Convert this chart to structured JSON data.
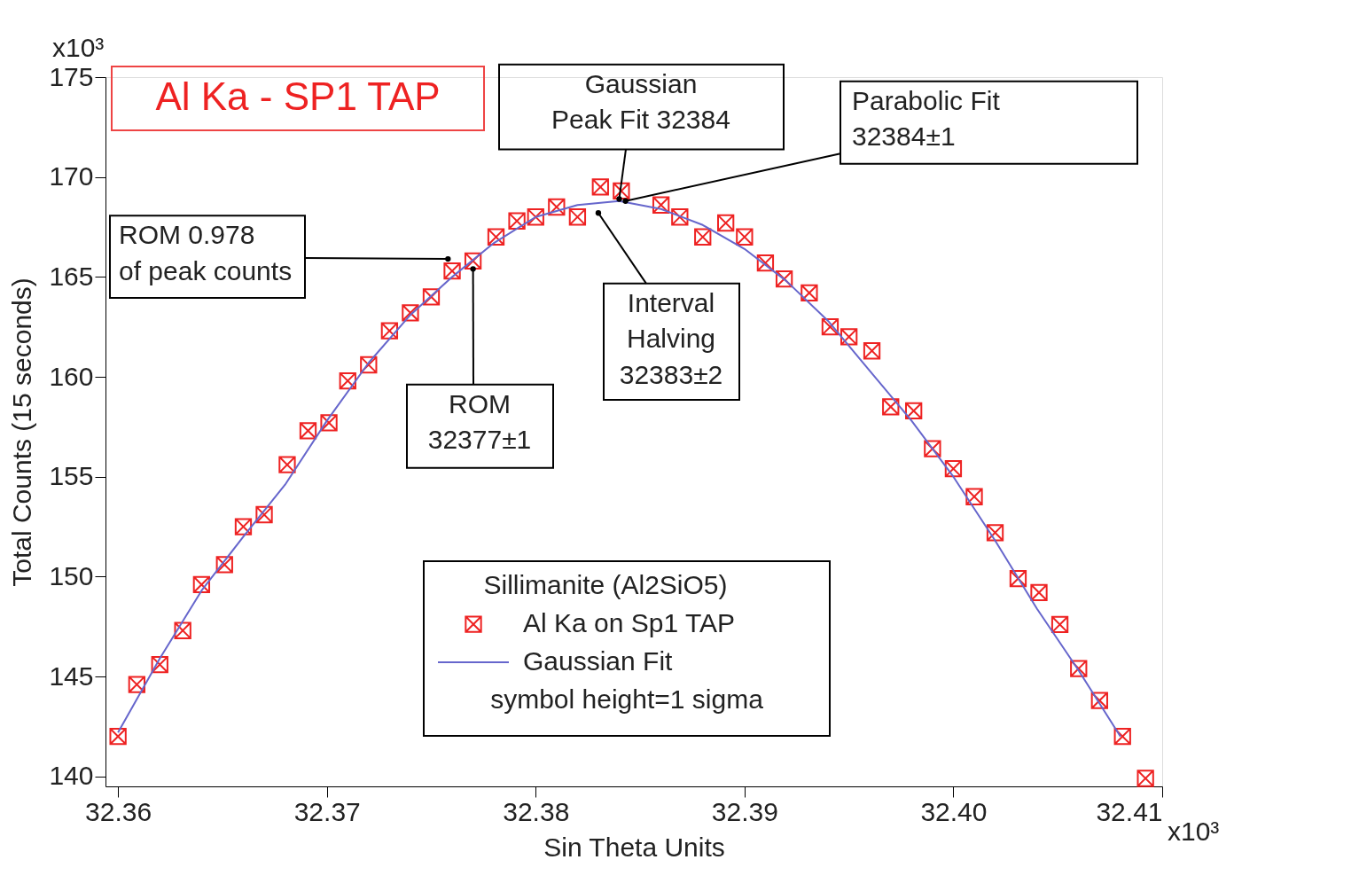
{
  "chart_data": {
    "type": "scatter",
    "title": "Al Ka - SP1 TAP",
    "xlabel": "Sin Theta Units",
    "ylabel": "Total Counts (15 seconds)",
    "legend_title": "Sillimanite (Al2SiO5)",
    "legend": "bottom",
    "grid": false,
    "xlim": [
      32.3594,
      32.41
    ],
    "xticks": [
      32.36,
      32.37,
      32.38,
      32.39,
      {
        "value": 32.4,
        "label": "32.40"
      },
      32.41
    ],
    "ylim": [
      139.5,
      175
    ],
    "yticks": [
      140,
      145,
      150,
      155,
      160,
      165,
      170,
      175
    ],
    "series": [
      {
        "name": "Al Ka on Sp1 TAP",
        "marker": "cross",
        "color": "#ee2222",
        "x": [
          32.36,
          32.3609,
          32.362,
          32.3631,
          32.364,
          32.3651,
          32.366,
          32.367,
          32.3681,
          32.3691,
          32.3701,
          32.371,
          32.372,
          32.373,
          32.374,
          32.375,
          32.376,
          32.377,
          32.3781,
          32.3791,
          32.38,
          32.381,
          32.382,
          32.3831,
          32.3841,
          32.386,
          32.3869,
          32.388,
          32.3891,
          32.39,
          32.391,
          32.3919,
          32.3931,
          32.3941,
          32.395,
          32.3961,
          32.397,
          32.3981,
          32.399,
          32.4,
          32.401,
          32.402,
          32.4031,
          32.4041,
          32.4051,
          32.406,
          32.407,
          32.4081,
          32.4092
        ],
        "values": [
          142.0,
          144.6,
          145.6,
          147.3,
          149.6,
          150.6,
          152.5,
          153.1,
          155.6,
          157.3,
          157.7,
          159.8,
          160.6,
          162.3,
          163.2,
          164.0,
          165.3,
          165.8,
          167.0,
          167.8,
          168.0,
          168.5,
          168.0,
          169.5,
          169.3,
          168.6,
          168.0,
          167.0,
          167.7,
          167.0,
          165.7,
          164.9,
          164.2,
          162.5,
          162.0,
          161.3,
          158.5,
          158.3,
          156.4,
          155.4,
          154.0,
          152.2,
          149.9,
          149.2,
          147.6,
          145.4,
          143.8,
          142.0,
          139.9
        ]
      },
      {
        "name": "Gaussian Fit",
        "type": "line",
        "marker": "none",
        "line_style": "solid",
        "color": "#6666cc",
        "x": [
          32.36,
          32.362,
          32.364,
          32.366,
          32.368,
          32.37,
          32.372,
          32.374,
          32.376,
          32.378,
          32.38,
          32.382,
          32.384,
          32.386,
          32.388,
          32.39,
          32.392,
          32.394,
          32.396,
          32.398,
          32.4,
          32.402,
          32.404,
          32.406,
          32.408
        ],
        "values": [
          142.2,
          145.9,
          149.3,
          152.0,
          154.6,
          157.8,
          160.7,
          163.1,
          165.0,
          166.7,
          168.0,
          168.6,
          168.8,
          168.4,
          167.6,
          166.4,
          164.8,
          162.8,
          160.3,
          157.8,
          155.0,
          151.8,
          148.4,
          145.3,
          142.0
        ]
      }
    ],
    "annotations": [
      {
        "text": "Gaussian\nPeak Fit 32384",
        "x": 32.384,
        "y": 168.9
      },
      {
        "text": "Parabolic Fit\n32384±1",
        "x": 32.3843,
        "y": 168.8
      },
      {
        "text": "ROM 0.978\nof peak counts",
        "x": 32.3758,
        "y": 165.9
      },
      {
        "text": "ROM\n32377±1",
        "x": 32.377,
        "y": 165.4
      },
      {
        "text": "Interval\nHalving\n32383±2",
        "x": 32.383,
        "y": 168.2
      },
      "symbol height=1 sigma",
      "x10³",
      "x10³"
    ]
  }
}
